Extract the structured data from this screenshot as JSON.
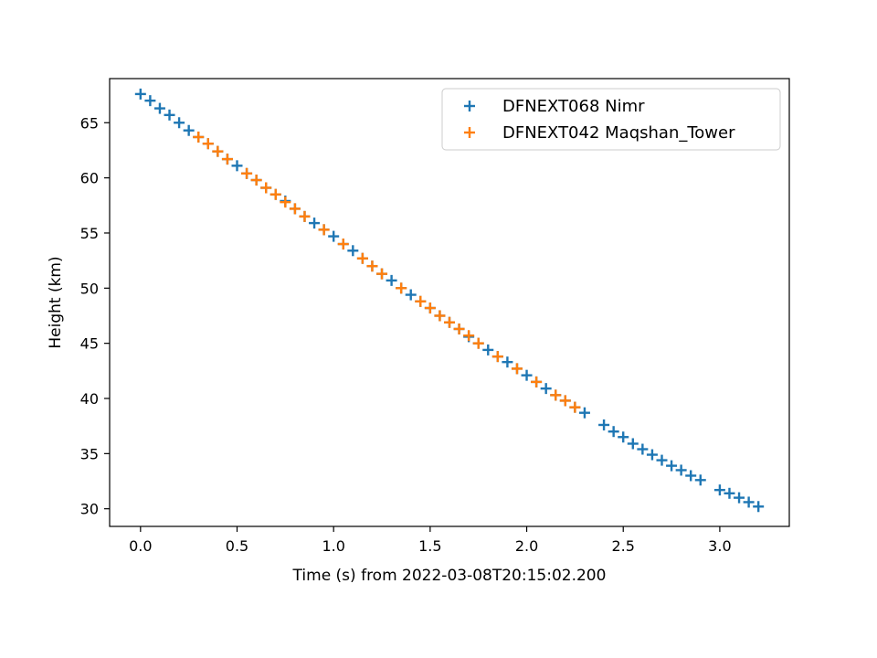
{
  "chart_data": {
    "type": "scatter",
    "title": "",
    "xlabel": "Time (s) from 2022-03-08T20:15:02.200",
    "ylabel": "Height (km)",
    "xlim": [
      -0.16,
      3.36
    ],
    "ylim": [
      28.4,
      69.0
    ],
    "xticks": [
      0.0,
      0.5,
      1.0,
      1.5,
      2.0,
      2.5,
      3.0
    ],
    "xtick_labels": [
      "0.0",
      "0.5",
      "1.0",
      "1.5",
      "2.0",
      "2.5",
      "3.0"
    ],
    "yticks": [
      30,
      35,
      40,
      45,
      50,
      55,
      60,
      65
    ],
    "ytick_labels": [
      "30",
      "35",
      "40",
      "45",
      "50",
      "55",
      "60",
      "65"
    ],
    "grid": false,
    "legend_position": "top-right",
    "marker": "plus",
    "series": [
      {
        "name": "DFNEXT068 Nimr",
        "color": "#1f77b4",
        "x": [
          0.0,
          0.05,
          0.1,
          0.15,
          0.2,
          0.25,
          0.3,
          0.35,
          0.4,
          0.45,
          0.5,
          0.55,
          0.6,
          0.65,
          0.7,
          0.75,
          0.8,
          0.85,
          0.9,
          0.95,
          1.0,
          1.05,
          1.1,
          1.15,
          1.2,
          1.25,
          1.3,
          1.35,
          1.4,
          1.45,
          1.5,
          1.55,
          1.6,
          1.65,
          1.7,
          1.75,
          1.8,
          1.85,
          1.9,
          1.95,
          2.0,
          2.05,
          2.1,
          2.15,
          2.2,
          2.25,
          2.3,
          2.4,
          2.45,
          2.5,
          2.55,
          2.6,
          2.65,
          2.7,
          2.75,
          2.8,
          2.85,
          2.9,
          3.0,
          3.05,
          3.1,
          3.15,
          3.2
        ],
        "y": [
          67.6,
          67.0,
          66.3,
          65.7,
          65.0,
          64.3,
          63.7,
          63.1,
          62.4,
          61.7,
          61.1,
          60.4,
          59.8,
          59.1,
          58.5,
          57.9,
          57.2,
          56.5,
          55.9,
          55.3,
          54.7,
          54.0,
          53.4,
          52.7,
          52.0,
          51.3,
          50.7,
          50.0,
          49.4,
          48.8,
          48.2,
          47.5,
          46.9,
          46.3,
          45.6,
          45.0,
          44.4,
          43.8,
          43.3,
          42.7,
          42.1,
          41.5,
          40.9,
          40.3,
          39.8,
          39.2,
          38.7,
          37.6,
          37.0,
          36.5,
          35.9,
          35.4,
          34.9,
          34.4,
          33.9,
          33.5,
          33.0,
          32.6,
          31.7,
          31.4,
          31.0,
          30.6,
          30.2
        ]
      },
      {
        "name": "DFNEXT042 Maqshan_Tower",
        "color": "#ff7f0e",
        "x": [
          0.3,
          0.35,
          0.4,
          0.45,
          0.55,
          0.6,
          0.65,
          0.7,
          0.75,
          0.8,
          0.85,
          0.95,
          1.05,
          1.15,
          1.2,
          1.25,
          1.35,
          1.45,
          1.5,
          1.55,
          1.6,
          1.65,
          1.7,
          1.75,
          1.85,
          1.95,
          2.05,
          2.15,
          2.2,
          2.25
        ],
        "y": [
          63.7,
          63.1,
          62.4,
          61.7,
          60.4,
          59.8,
          59.1,
          58.5,
          57.8,
          57.2,
          56.5,
          55.3,
          54.0,
          52.7,
          52.0,
          51.3,
          50.0,
          48.8,
          48.2,
          47.5,
          46.9,
          46.3,
          45.7,
          45.0,
          43.8,
          42.7,
          41.5,
          40.3,
          39.8,
          39.2
        ]
      }
    ]
  }
}
